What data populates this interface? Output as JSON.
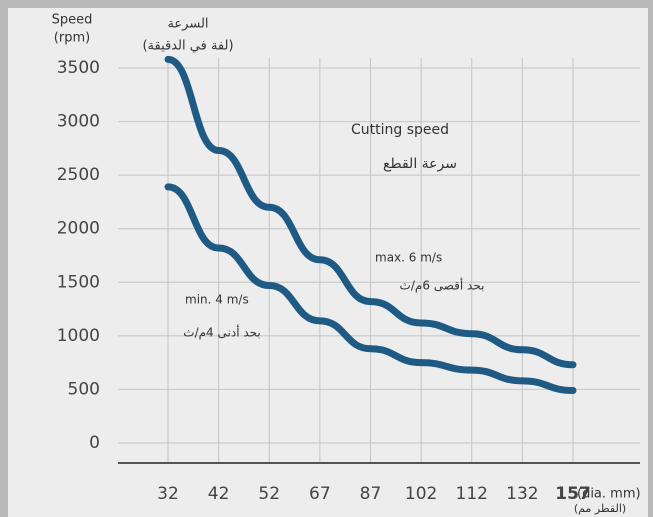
{
  "chart_data": {
    "type": "line",
    "y_label": [
      "Speed",
      "(rpm)"
    ],
    "y_label_ar": [
      "السرعة",
      "(لفة في الدقيقة)"
    ],
    "title": "Cutting speed",
    "subtitle": "سرعة القطع",
    "x_label": "(dia. mm)",
    "x_label_ar": "(القطر مم)",
    "categories": [
      "32",
      "42",
      "52",
      "67",
      "87",
      "102",
      "112",
      "132",
      "157"
    ],
    "series": [
      {
        "name": "max. 6 m/s",
        "name_ar": "بحد أقصى 6م/ث",
        "color": "#1f5a85",
        "values": [
          3580,
          2730,
          2200,
          1710,
          1320,
          1120,
          1020,
          870,
          730
        ]
      },
      {
        "name": "min. 4 m/s",
        "name_ar": "بحد أدنى 4م/ث",
        "color": "#1f5a85",
        "values": [
          2390,
          1820,
          1470,
          1140,
          880,
          750,
          680,
          580,
          490
        ]
      }
    ],
    "ylim": [
      0,
      3500
    ],
    "yticks": [
      0,
      500,
      1000,
      1500,
      2000,
      2500,
      3000,
      3500
    ],
    "grid": true
  }
}
